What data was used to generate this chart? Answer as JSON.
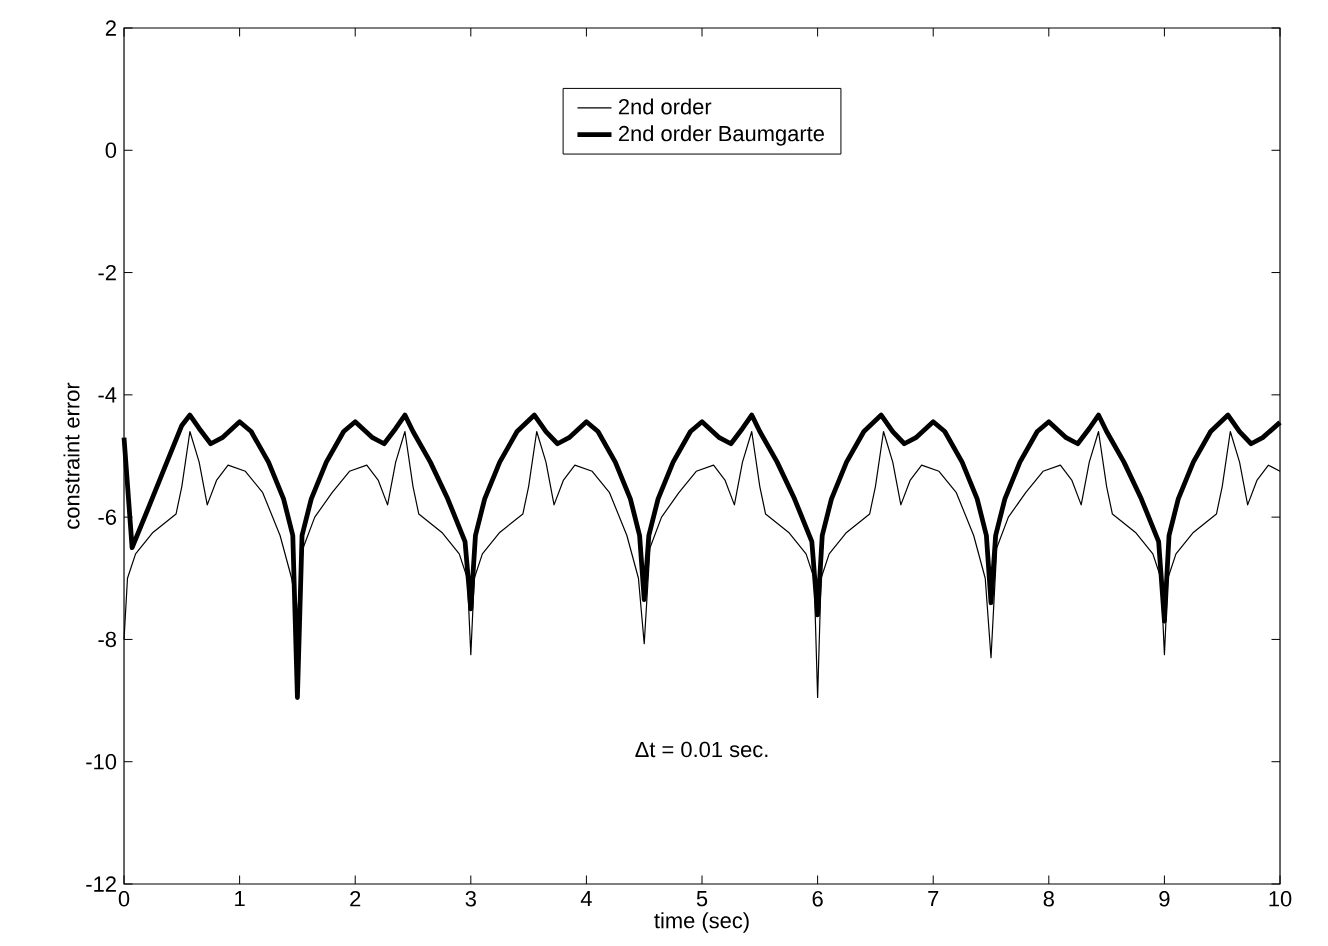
{
  "chart_data": {
    "type": "line",
    "xlabel": "time (sec)",
    "ylabel": "constraint error",
    "xlim": [
      0,
      10
    ],
    "ylim": [
      -12,
      2
    ],
    "xticks": [
      0,
      1,
      2,
      3,
      4,
      5,
      6,
      7,
      8,
      9,
      10
    ],
    "yticks": [
      -12,
      -10,
      -8,
      -6,
      -4,
      -2,
      0,
      2
    ],
    "grid": false,
    "legend": "top",
    "marker": "none",
    "line_style": "solid",
    "annotations": [
      "Δt = 0.01 sec."
    ],
    "series": [
      {
        "name": "2nd order",
        "color": "#000000",
        "x": [
          0,
          0.03,
          0.1,
          0.25,
          0.45,
          0.5,
          0.57,
          0.65,
          0.72,
          0.8,
          0.9,
          1.05,
          1.2,
          1.35,
          1.45,
          1.5,
          1.55,
          1.65,
          1.8,
          1.95,
          2.1,
          2.2,
          2.28,
          2.35,
          2.43,
          2.5,
          2.55,
          2.75,
          2.9,
          2.97,
          3.0,
          3.03,
          3.1,
          3.25,
          3.45,
          3.5,
          3.57,
          3.65,
          3.72,
          3.8,
          3.9,
          4.05,
          4.2,
          4.35,
          4.45,
          4.5,
          4.55,
          4.65,
          4.8,
          4.95,
          5.1,
          5.2,
          5.28,
          5.35,
          5.43,
          5.5,
          5.55,
          5.75,
          5.9,
          5.97,
          6.0,
          6.03,
          6.1,
          6.25,
          6.45,
          6.5,
          6.57,
          6.65,
          6.72,
          6.8,
          6.9,
          7.05,
          7.2,
          7.35,
          7.45,
          7.5,
          7.55,
          7.65,
          7.8,
          7.95,
          8.1,
          8.2,
          8.28,
          8.35,
          8.43,
          8.5,
          8.55,
          8.75,
          8.9,
          8.97,
          9.0,
          9.03,
          9.1,
          9.25,
          9.45,
          9.5,
          9.57,
          9.65,
          9.72,
          9.8,
          9.9,
          10.0
        ],
        "values": [
          -8,
          -7,
          -6.6,
          -6.25,
          -5.95,
          -5.5,
          -4.6,
          -5.1,
          -5.8,
          -5.4,
          -5.15,
          -5.25,
          -5.6,
          -6.3,
          -7.0,
          -7.6,
          -6.5,
          -6.0,
          -5.6,
          -5.25,
          -5.15,
          -5.4,
          -5.8,
          -5.1,
          -4.6,
          -5.5,
          -5.95,
          -6.25,
          -6.6,
          -7.0,
          -8.25,
          -7,
          -6.6,
          -6.25,
          -5.95,
          -5.5,
          -4.6,
          -5.1,
          -5.8,
          -5.4,
          -5.15,
          -5.25,
          -5.6,
          -6.3,
          -7.0,
          -8.07,
          -6.5,
          -6.0,
          -5.6,
          -5.25,
          -5.15,
          -5.4,
          -5.8,
          -5.1,
          -4.6,
          -5.5,
          -5.95,
          -6.25,
          -6.6,
          -7.0,
          -8.95,
          -7,
          -6.6,
          -6.25,
          -5.95,
          -5.5,
          -4.6,
          -5.1,
          -5.8,
          -5.4,
          -5.15,
          -5.25,
          -5.6,
          -6.3,
          -7.0,
          -8.3,
          -6.5,
          -6.0,
          -5.6,
          -5.25,
          -5.15,
          -5.4,
          -5.8,
          -5.1,
          -4.6,
          -5.5,
          -5.95,
          -6.25,
          -6.6,
          -7.0,
          -8.25,
          -7,
          -6.6,
          -6.25,
          -5.95,
          -5.5,
          -4.6,
          -5.1,
          -5.8,
          -5.4,
          -5.15,
          -5.25
        ]
      },
      {
        "name": "2nd order Baumgarte",
        "color": "#000000",
        "x": [
          0,
          0.07,
          0.2,
          0.35,
          0.5,
          0.57,
          0.65,
          0.75,
          0.85,
          1.0,
          1.1,
          1.25,
          1.38,
          1.46,
          1.5,
          1.54,
          1.62,
          1.75,
          1.9,
          2.0,
          2.15,
          2.25,
          2.35,
          2.43,
          2.5,
          2.65,
          2.8,
          2.95,
          3.0,
          3.04,
          3.12,
          3.25,
          3.4,
          3.55,
          3.65,
          3.75,
          3.85,
          4.0,
          4.1,
          4.25,
          4.38,
          4.46,
          4.5,
          4.54,
          4.62,
          4.75,
          4.9,
          5.0,
          5.15,
          5.25,
          5.35,
          5.43,
          5.5,
          5.65,
          5.8,
          5.95,
          6.0,
          6.04,
          6.12,
          6.25,
          6.4,
          6.55,
          6.65,
          6.75,
          6.85,
          7.0,
          7.1,
          7.25,
          7.38,
          7.46,
          7.5,
          7.54,
          7.62,
          7.75,
          7.9,
          8.0,
          8.15,
          8.25,
          8.35,
          8.43,
          8.5,
          8.65,
          8.8,
          8.95,
          9.0,
          9.04,
          9.12,
          9.25,
          9.4,
          9.55,
          9.65,
          9.75,
          9.85,
          10.0
        ],
        "values": [
          -4.7,
          -6.5,
          -5.9,
          -5.2,
          -4.5,
          -4.33,
          -4.55,
          -4.8,
          -4.7,
          -4.44,
          -4.6,
          -5.1,
          -5.7,
          -6.3,
          -8.95,
          -6.3,
          -5.7,
          -5.1,
          -4.6,
          -4.44,
          -4.7,
          -4.8,
          -4.55,
          -4.33,
          -4.6,
          -5.1,
          -5.7,
          -6.4,
          -7.5,
          -6.3,
          -5.7,
          -5.1,
          -4.6,
          -4.33,
          -4.6,
          -4.8,
          -4.7,
          -4.44,
          -4.6,
          -5.1,
          -5.7,
          -6.3,
          -7.35,
          -6.3,
          -5.7,
          -5.1,
          -4.6,
          -4.44,
          -4.7,
          -4.8,
          -4.55,
          -4.33,
          -4.6,
          -5.1,
          -5.7,
          -6.4,
          -7.6,
          -6.3,
          -5.7,
          -5.1,
          -4.6,
          -4.33,
          -4.6,
          -4.8,
          -4.7,
          -4.44,
          -4.6,
          -5.1,
          -5.7,
          -6.3,
          -7.4,
          -6.3,
          -5.7,
          -5.1,
          -4.6,
          -4.44,
          -4.7,
          -4.8,
          -4.55,
          -4.33,
          -4.6,
          -5.1,
          -5.7,
          -6.4,
          -7.7,
          -6.3,
          -5.7,
          -5.1,
          -4.6,
          -4.33,
          -4.6,
          -4.8,
          -4.7,
          -4.45
        ]
      }
    ]
  }
}
